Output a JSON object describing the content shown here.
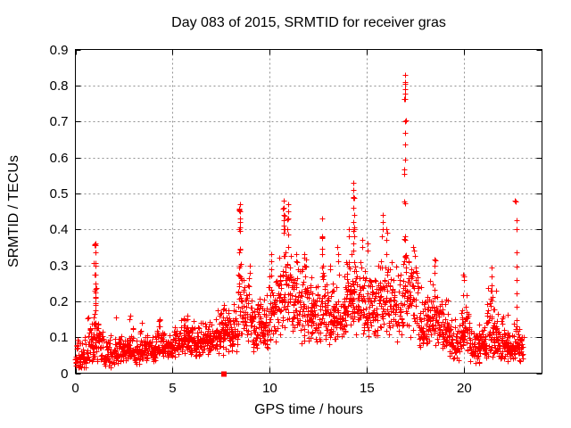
{
  "window": {
    "title": "Day 083 of 2015, SRMTID for receiver gras"
  },
  "colors": {
    "marker": "#ff0000",
    "grid": "#909090",
    "frame": "#000000",
    "background": "#ffffff",
    "text": "#000000"
  },
  "chart_data": {
    "type": "scatter",
    "title": "Day 083 of 2015, SRMTID for receiver gras",
    "xlabel": "GPS time / hours",
    "ylabel": "SRMTID / TECUs",
    "xlim": [
      0,
      24
    ],
    "ylim": [
      0,
      0.9
    ],
    "xticks": {
      "values": [
        0,
        5,
        10,
        15,
        20
      ],
      "labels": [
        "0",
        "5",
        "10",
        "15",
        "20"
      ]
    },
    "yticks": {
      "values": [
        0,
        0.1,
        0.2,
        0.3,
        0.4,
        0.5,
        0.6,
        0.7,
        0.8,
        0.9
      ],
      "labels": [
        "0",
        "0.1",
        "0.2",
        "0.3",
        "0.4",
        "0.5",
        "0.6",
        "0.7",
        "0.8",
        "0.9"
      ]
    },
    "grid": true,
    "legend": "none",
    "marker": {
      "glyph": "plus",
      "size": 7,
      "color": "#ff0000"
    },
    "baseline_square": {
      "x": 7.65,
      "y": 0
    },
    "data_span_hours": [
      0,
      23.05
    ],
    "seed": 83,
    "band_bins": [
      [
        0.0,
        0.3,
        0.01,
        0.045,
        0.1
      ],
      [
        0.3,
        0.6,
        0.01,
        0.05,
        0.11
      ],
      [
        0.6,
        0.95,
        0.02,
        0.07,
        0.16
      ],
      [
        0.95,
        1.12,
        0.04,
        0.1,
        0.17
      ],
      [
        1.12,
        1.45,
        0.03,
        0.09,
        0.155
      ],
      [
        1.45,
        1.8,
        0.015,
        0.05,
        0.1
      ],
      [
        1.8,
        2.3,
        0.02,
        0.055,
        0.12
      ],
      [
        2.3,
        2.75,
        0.025,
        0.06,
        0.11
      ],
      [
        2.75,
        3.0,
        0.03,
        0.065,
        0.16
      ],
      [
        3.0,
        3.3,
        0.025,
        0.055,
        0.1
      ],
      [
        3.3,
        3.55,
        0.03,
        0.06,
        0.135
      ],
      [
        3.55,
        4.1,
        0.03,
        0.06,
        0.11
      ],
      [
        4.1,
        4.5,
        0.035,
        0.07,
        0.145
      ],
      [
        4.5,
        5.0,
        0.04,
        0.075,
        0.12
      ],
      [
        5.0,
        5.45,
        0.045,
        0.08,
        0.13
      ],
      [
        5.45,
        6.0,
        0.05,
        0.09,
        0.16
      ],
      [
        6.0,
        6.5,
        0.045,
        0.085,
        0.145
      ],
      [
        6.5,
        7.0,
        0.05,
        0.09,
        0.15
      ],
      [
        7.0,
        7.45,
        0.055,
        0.1,
        0.17
      ],
      [
        7.45,
        8.0,
        0.05,
        0.11,
        0.19
      ],
      [
        8.0,
        8.35,
        0.06,
        0.12,
        0.21
      ],
      [
        8.35,
        8.6,
        0.1,
        0.18,
        0.3
      ],
      [
        8.6,
        9.1,
        0.08,
        0.16,
        0.27
      ],
      [
        9.1,
        9.5,
        0.06,
        0.13,
        0.22
      ],
      [
        9.5,
        9.9,
        0.05,
        0.12,
        0.22
      ],
      [
        9.9,
        10.35,
        0.08,
        0.17,
        0.3
      ],
      [
        10.35,
        10.75,
        0.1,
        0.22,
        0.36
      ],
      [
        10.75,
        11.15,
        0.12,
        0.24,
        0.38
      ],
      [
        11.15,
        11.6,
        0.1,
        0.2,
        0.33
      ],
      [
        11.6,
        12.2,
        0.08,
        0.17,
        0.3
      ],
      [
        12.2,
        12.6,
        0.07,
        0.15,
        0.25
      ],
      [
        12.6,
        12.85,
        0.08,
        0.17,
        0.28
      ],
      [
        12.85,
        13.4,
        0.08,
        0.16,
        0.27
      ],
      [
        13.4,
        13.9,
        0.08,
        0.17,
        0.3
      ],
      [
        13.9,
        14.2,
        0.1,
        0.2,
        0.35
      ],
      [
        14.2,
        14.45,
        0.12,
        0.22,
        0.33
      ],
      [
        14.45,
        15.1,
        0.09,
        0.18,
        0.33
      ],
      [
        15.1,
        15.55,
        0.09,
        0.17,
        0.3
      ],
      [
        15.55,
        16.1,
        0.1,
        0.21,
        0.36
      ],
      [
        16.1,
        16.55,
        0.09,
        0.19,
        0.33
      ],
      [
        16.55,
        16.85,
        0.08,
        0.17,
        0.3
      ],
      [
        16.85,
        17.15,
        0.12,
        0.24,
        0.35
      ],
      [
        17.15,
        17.65,
        0.1,
        0.22,
        0.34
      ],
      [
        17.65,
        18.15,
        0.06,
        0.13,
        0.24
      ],
      [
        18.15,
        18.65,
        0.07,
        0.15,
        0.28
      ],
      [
        18.65,
        19.25,
        0.05,
        0.12,
        0.22
      ],
      [
        19.25,
        19.8,
        0.025,
        0.08,
        0.16
      ],
      [
        19.8,
        20.3,
        0.05,
        0.12,
        0.23
      ],
      [
        20.3,
        20.8,
        0.025,
        0.07,
        0.14
      ],
      [
        20.8,
        21.15,
        0.03,
        0.075,
        0.15
      ],
      [
        21.15,
        21.7,
        0.04,
        0.11,
        0.24
      ],
      [
        21.7,
        22.25,
        0.03,
        0.08,
        0.17
      ],
      [
        22.25,
        22.6,
        0.025,
        0.07,
        0.14
      ],
      [
        22.6,
        22.8,
        0.03,
        0.08,
        0.14
      ],
      [
        22.8,
        23.05,
        0.02,
        0.06,
        0.12
      ]
    ],
    "spike_columns": [
      {
        "x": 1.03,
        "ys": [
          0.36,
          0.355,
          0.335,
          0.305,
          0.3,
          0.275,
          0.25,
          0.235,
          0.225,
          0.21,
          0.195,
          0.19,
          0.175
        ]
      },
      {
        "x": 2.1,
        "ys": [
          0.155
        ]
      },
      {
        "x": 2.82,
        "ys": [
          0.16,
          0.15
        ]
      },
      {
        "x": 3.42,
        "ys": [
          0.14
        ]
      },
      {
        "x": 4.3,
        "ys": [
          0.15,
          0.145,
          0.13
        ]
      },
      {
        "x": 5.75,
        "ys": [
          0.16,
          0.15
        ]
      },
      {
        "x": 7.3,
        "ys": [
          0.175
        ]
      },
      {
        "x": 7.62,
        "ys": [
          0.19,
          0.18
        ]
      },
      {
        "x": 8.45,
        "ys": [
          0.47,
          0.455,
          0.45,
          0.43,
          0.42,
          0.405,
          0.4,
          0.395,
          0.345,
          0.335,
          0.3,
          0.295,
          0.27,
          0.25
        ]
      },
      {
        "x": 8.95,
        "ys": [
          0.3,
          0.28,
          0.265
        ]
      },
      {
        "x": 10.05,
        "ys": [
          0.33,
          0.31,
          0.29
        ]
      },
      {
        "x": 10.72,
        "ys": [
          0.48,
          0.46,
          0.44,
          0.425,
          0.41,
          0.4,
          0.39
        ]
      },
      {
        "x": 10.92,
        "ys": [
          0.47,
          0.45,
          0.43,
          0.4,
          0.385
        ]
      },
      {
        "x": 11.35,
        "ys": [
          0.33,
          0.31
        ]
      },
      {
        "x": 11.8,
        "ys": [
          0.33,
          0.32,
          0.3
        ]
      },
      {
        "x": 12.7,
        "ys": [
          0.43,
          0.38,
          0.375,
          0.345,
          0.33,
          0.3,
          0.295,
          0.27
        ]
      },
      {
        "x": 13.1,
        "ys": [
          0.3,
          0.29
        ]
      },
      {
        "x": 13.5,
        "ys": [
          0.35,
          0.33,
          0.31
        ]
      },
      {
        "x": 14.05,
        "ys": [
          0.4,
          0.38
        ]
      },
      {
        "x": 14.3,
        "ys": [
          0.53,
          0.51,
          0.49,
          0.487,
          0.46,
          0.44,
          0.42,
          0.405,
          0.4,
          0.395,
          0.38,
          0.36,
          0.34
        ]
      },
      {
        "x": 14.75,
        "ys": [
          0.37,
          0.35
        ]
      },
      {
        "x": 15.0,
        "ys": [
          0.36,
          0.34
        ]
      },
      {
        "x": 15.8,
        "ys": [
          0.44,
          0.42,
          0.4,
          0.38
        ]
      },
      {
        "x": 16.0,
        "ys": [
          0.4,
          0.39,
          0.37
        ]
      },
      {
        "x": 16.95,
        "ys": [
          0.83,
          0.805,
          0.79,
          0.778,
          0.763,
          0.7,
          0.668,
          0.637,
          0.595,
          0.567,
          0.553,
          0.477,
          0.472,
          0.38,
          0.37
        ]
      },
      {
        "x": 17.4,
        "ys": [
          0.35,
          0.34
        ]
      },
      {
        "x": 18.45,
        "ys": [
          0.315,
          0.3,
          0.28
        ]
      },
      {
        "x": 20.0,
        "ys": [
          0.27,
          0.26
        ]
      },
      {
        "x": 21.4,
        "ys": [
          0.295,
          0.27,
          0.245,
          0.23
        ]
      },
      {
        "x": 22.68,
        "ys": [
          0.478,
          0.425,
          0.4,
          0.335,
          0.296,
          0.26,
          0.222,
          0.185,
          0.148
        ]
      }
    ]
  }
}
